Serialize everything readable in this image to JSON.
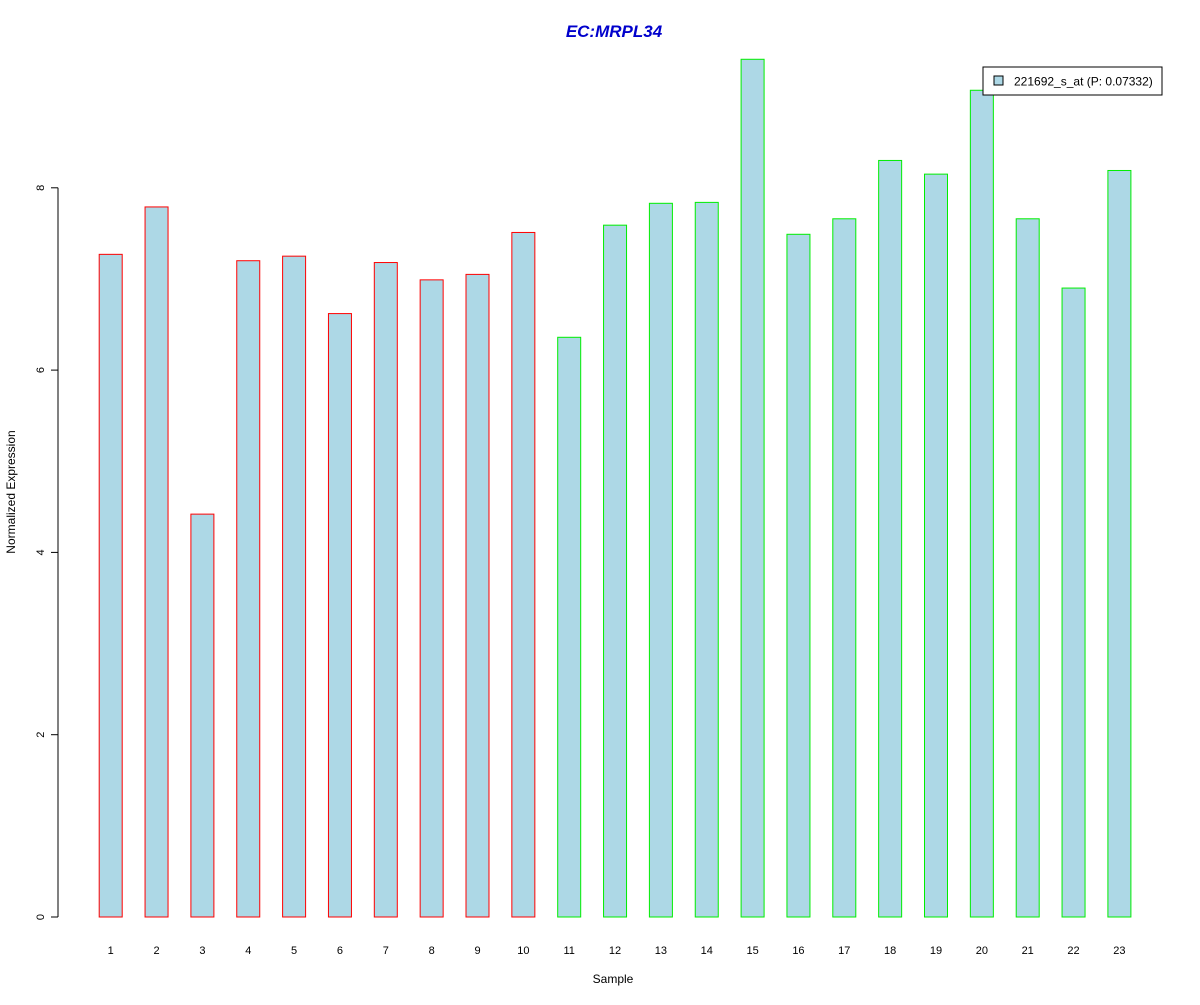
{
  "chart_data": {
    "type": "bar",
    "title": "EC:MRPL34",
    "xlabel": "Sample",
    "ylabel": "Normalized Expression",
    "categories": [
      "1",
      "2",
      "3",
      "4",
      "5",
      "6",
      "7",
      "8",
      "9",
      "10",
      "11",
      "12",
      "13",
      "14",
      "15",
      "16",
      "17",
      "18",
      "19",
      "20",
      "21",
      "22",
      "23"
    ],
    "series": [
      {
        "name": "221692_s_at (P: 0.07332)",
        "values": [
          7.27,
          7.79,
          4.42,
          7.2,
          7.25,
          6.62,
          7.18,
          6.99,
          7.05,
          7.51,
          6.36,
          7.59,
          7.83,
          7.84,
          9.41,
          7.49,
          7.66,
          8.3,
          8.15,
          9.07,
          7.66,
          6.9,
          8.19
        ]
      }
    ],
    "group_border_colors": [
      "#ff0000",
      "#ff0000",
      "#ff0000",
      "#ff0000",
      "#ff0000",
      "#ff0000",
      "#ff0000",
      "#ff0000",
      "#ff0000",
      "#ff0000",
      "#00ee00",
      "#00ee00",
      "#00ee00",
      "#00ee00",
      "#00ee00",
      "#00ee00",
      "#00ee00",
      "#00ee00",
      "#00ee00",
      "#00ee00",
      "#00ee00",
      "#00ee00",
      "#00ee00"
    ],
    "ylim": [
      0,
      9.41
    ],
    "yticks": [
      0,
      2,
      4,
      6,
      8
    ],
    "grid": false,
    "legend_position": "top-right",
    "colors": {
      "bar_fill": "#add8e6",
      "title": "#0000cc",
      "axis": "#000000"
    }
  }
}
